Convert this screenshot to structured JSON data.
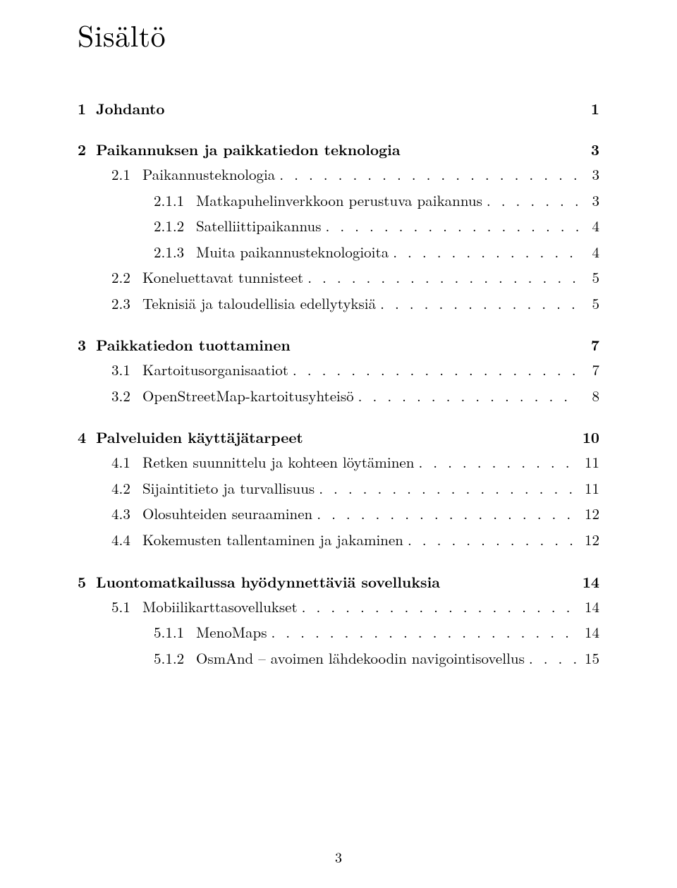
{
  "title": "Sisältö",
  "page_number": "3",
  "entries": [
    {
      "type": "section",
      "num": "1",
      "text": "Johdanto",
      "page": "1"
    },
    {
      "type": "section",
      "num": "2",
      "text": "Paikannuksen ja paikkatiedon teknologia",
      "page": "3"
    },
    {
      "type": "sub",
      "num": "2.1",
      "text": "Paikannusteknologia",
      "page": "3"
    },
    {
      "type": "subsub",
      "num": "2.1.1",
      "text": "Matkapuhelinverkkoon perustuva paikannus",
      "page": "3"
    },
    {
      "type": "subsub",
      "num": "2.1.2",
      "text": "Satelliittipaikannus",
      "page": "4"
    },
    {
      "type": "subsub",
      "num": "2.1.3",
      "text": "Muita paikannusteknologioita",
      "page": "4"
    },
    {
      "type": "sub",
      "num": "2.2",
      "text": "Koneluettavat tunnisteet",
      "page": "5"
    },
    {
      "type": "sub",
      "num": "2.3",
      "text": "Teknisiä ja taloudellisia edellytyksiä",
      "page": "5"
    },
    {
      "type": "section",
      "num": "3",
      "text": "Paikkatiedon tuottaminen",
      "page": "7"
    },
    {
      "type": "sub",
      "num": "3.1",
      "text": "Kartoitusorganisaatiot",
      "page": "7"
    },
    {
      "type": "sub",
      "num": "3.2",
      "text": "OpenStreetMap-kartoitusyhteisö",
      "page": "8"
    },
    {
      "type": "section",
      "num": "4",
      "text": "Palveluiden käyttäjätarpeet",
      "page": "10"
    },
    {
      "type": "sub",
      "num": "4.1",
      "text": "Retken suunnittelu ja kohteen löytäminen",
      "page": "11"
    },
    {
      "type": "sub",
      "num": "4.2",
      "text": "Sijaintitieto ja turvallisuus",
      "page": "11"
    },
    {
      "type": "sub",
      "num": "4.3",
      "text": "Olosuhteiden seuraaminen",
      "page": "12"
    },
    {
      "type": "sub",
      "num": "4.4",
      "text": "Kokemusten tallentaminen ja jakaminen",
      "page": "12"
    },
    {
      "type": "section",
      "num": "5",
      "text": "Luontomatkailussa hyödynnettäviä sovelluksia",
      "page": "14"
    },
    {
      "type": "sub",
      "num": "5.1",
      "text": "Mobiilikarttasovellukset",
      "page": "14"
    },
    {
      "type": "subsub",
      "num": "5.1.1",
      "text": "MenoMaps",
      "page": "14"
    },
    {
      "type": "subsub",
      "num": "5.1.2",
      "text": "OsmAnd – avoimen lähdekoodin navigointisovellus",
      "page": "15"
    }
  ]
}
